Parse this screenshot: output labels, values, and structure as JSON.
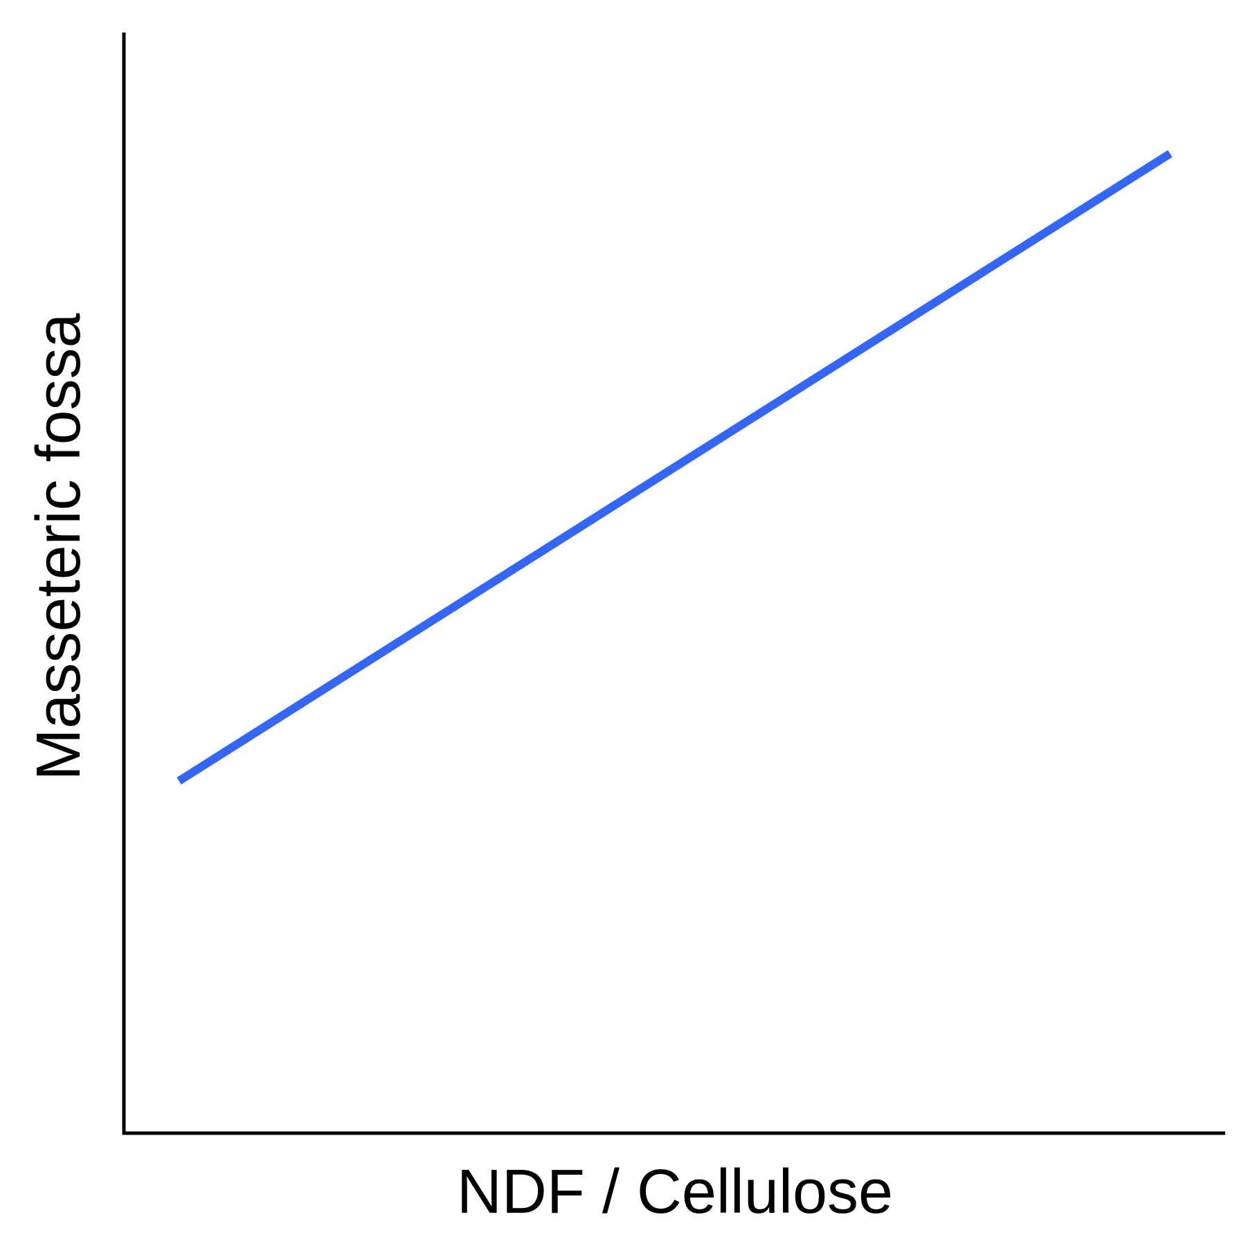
{
  "chart_data": {
    "type": "line",
    "title": "",
    "xlabel": "NDF / Cellulose",
    "ylabel": "Masseteric fossa",
    "xlim": [
      0,
      1
    ],
    "ylim": [
      0,
      1
    ],
    "grid": false,
    "series": [
      {
        "color": "#3366ff",
        "x": [
          0.05,
          0.95
        ],
        "y": [
          0.32,
          0.89
        ]
      }
    ]
  }
}
